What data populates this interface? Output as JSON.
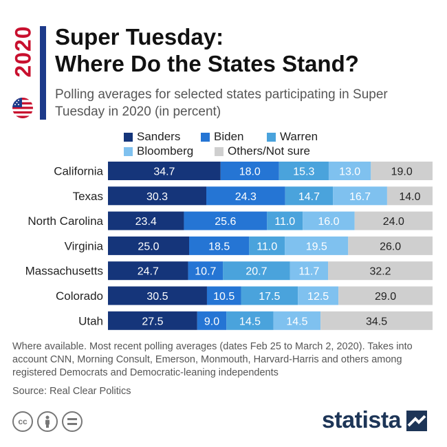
{
  "header": {
    "year": "2020",
    "title_line1": "Super Tuesday:",
    "title_line2": "Where Do the States Stand?",
    "subtitle": "Polling averages for selected states participating in Super Tuesday in 2020 (in percent)"
  },
  "footer": {
    "note": "Where available. Most recent polling averages (dates Feb 25 to March 2, 2020). Takes into account CNN, Morning Consult, Emerson, Monmouth, Harvard-Harris and others among registered Democrats and Democratic-leaning independents",
    "source": "Source: Real Clear Politics",
    "brand": "statista"
  },
  "icons": [
    "us-flag-icon",
    "cc-icon",
    "by-icon",
    "nd-icon",
    "statista-logo-icon"
  ],
  "colors": {
    "accent": "#1d3a8a",
    "year": "#c8102e"
  },
  "chart_data": {
    "type": "bar",
    "orientation": "horizontal",
    "stacked": true,
    "categories": [
      "California",
      "Texas",
      "North Carolina",
      "Virginia",
      "Massachusetts",
      "Colorado",
      "Utah"
    ],
    "series": [
      {
        "name": "Sanders",
        "color": "#15357a",
        "values": [
          34.7,
          30.3,
          23.4,
          25.0,
          24.7,
          30.5,
          27.5
        ]
      },
      {
        "name": "Biden",
        "color": "#2575d4",
        "values": [
          18.0,
          24.3,
          25.6,
          18.5,
          10.7,
          10.5,
          9.0
        ]
      },
      {
        "name": "Warren",
        "color": "#4aa3dc",
        "values": [
          15.3,
          14.7,
          11.0,
          11.0,
          20.7,
          17.5,
          14.5
        ]
      },
      {
        "name": "Bloomberg",
        "color": "#7fc1ef",
        "values": [
          13.0,
          16.7,
          16.0,
          19.5,
          11.7,
          12.5,
          14.5
        ]
      },
      {
        "name": "Others/Not sure",
        "color": "#cfcfcf",
        "values": [
          19.0,
          14.0,
          24.0,
          26.0,
          32.2,
          29.0,
          34.5
        ]
      }
    ],
    "legend_position": "top",
    "grid": false,
    "data_labels": true
  }
}
